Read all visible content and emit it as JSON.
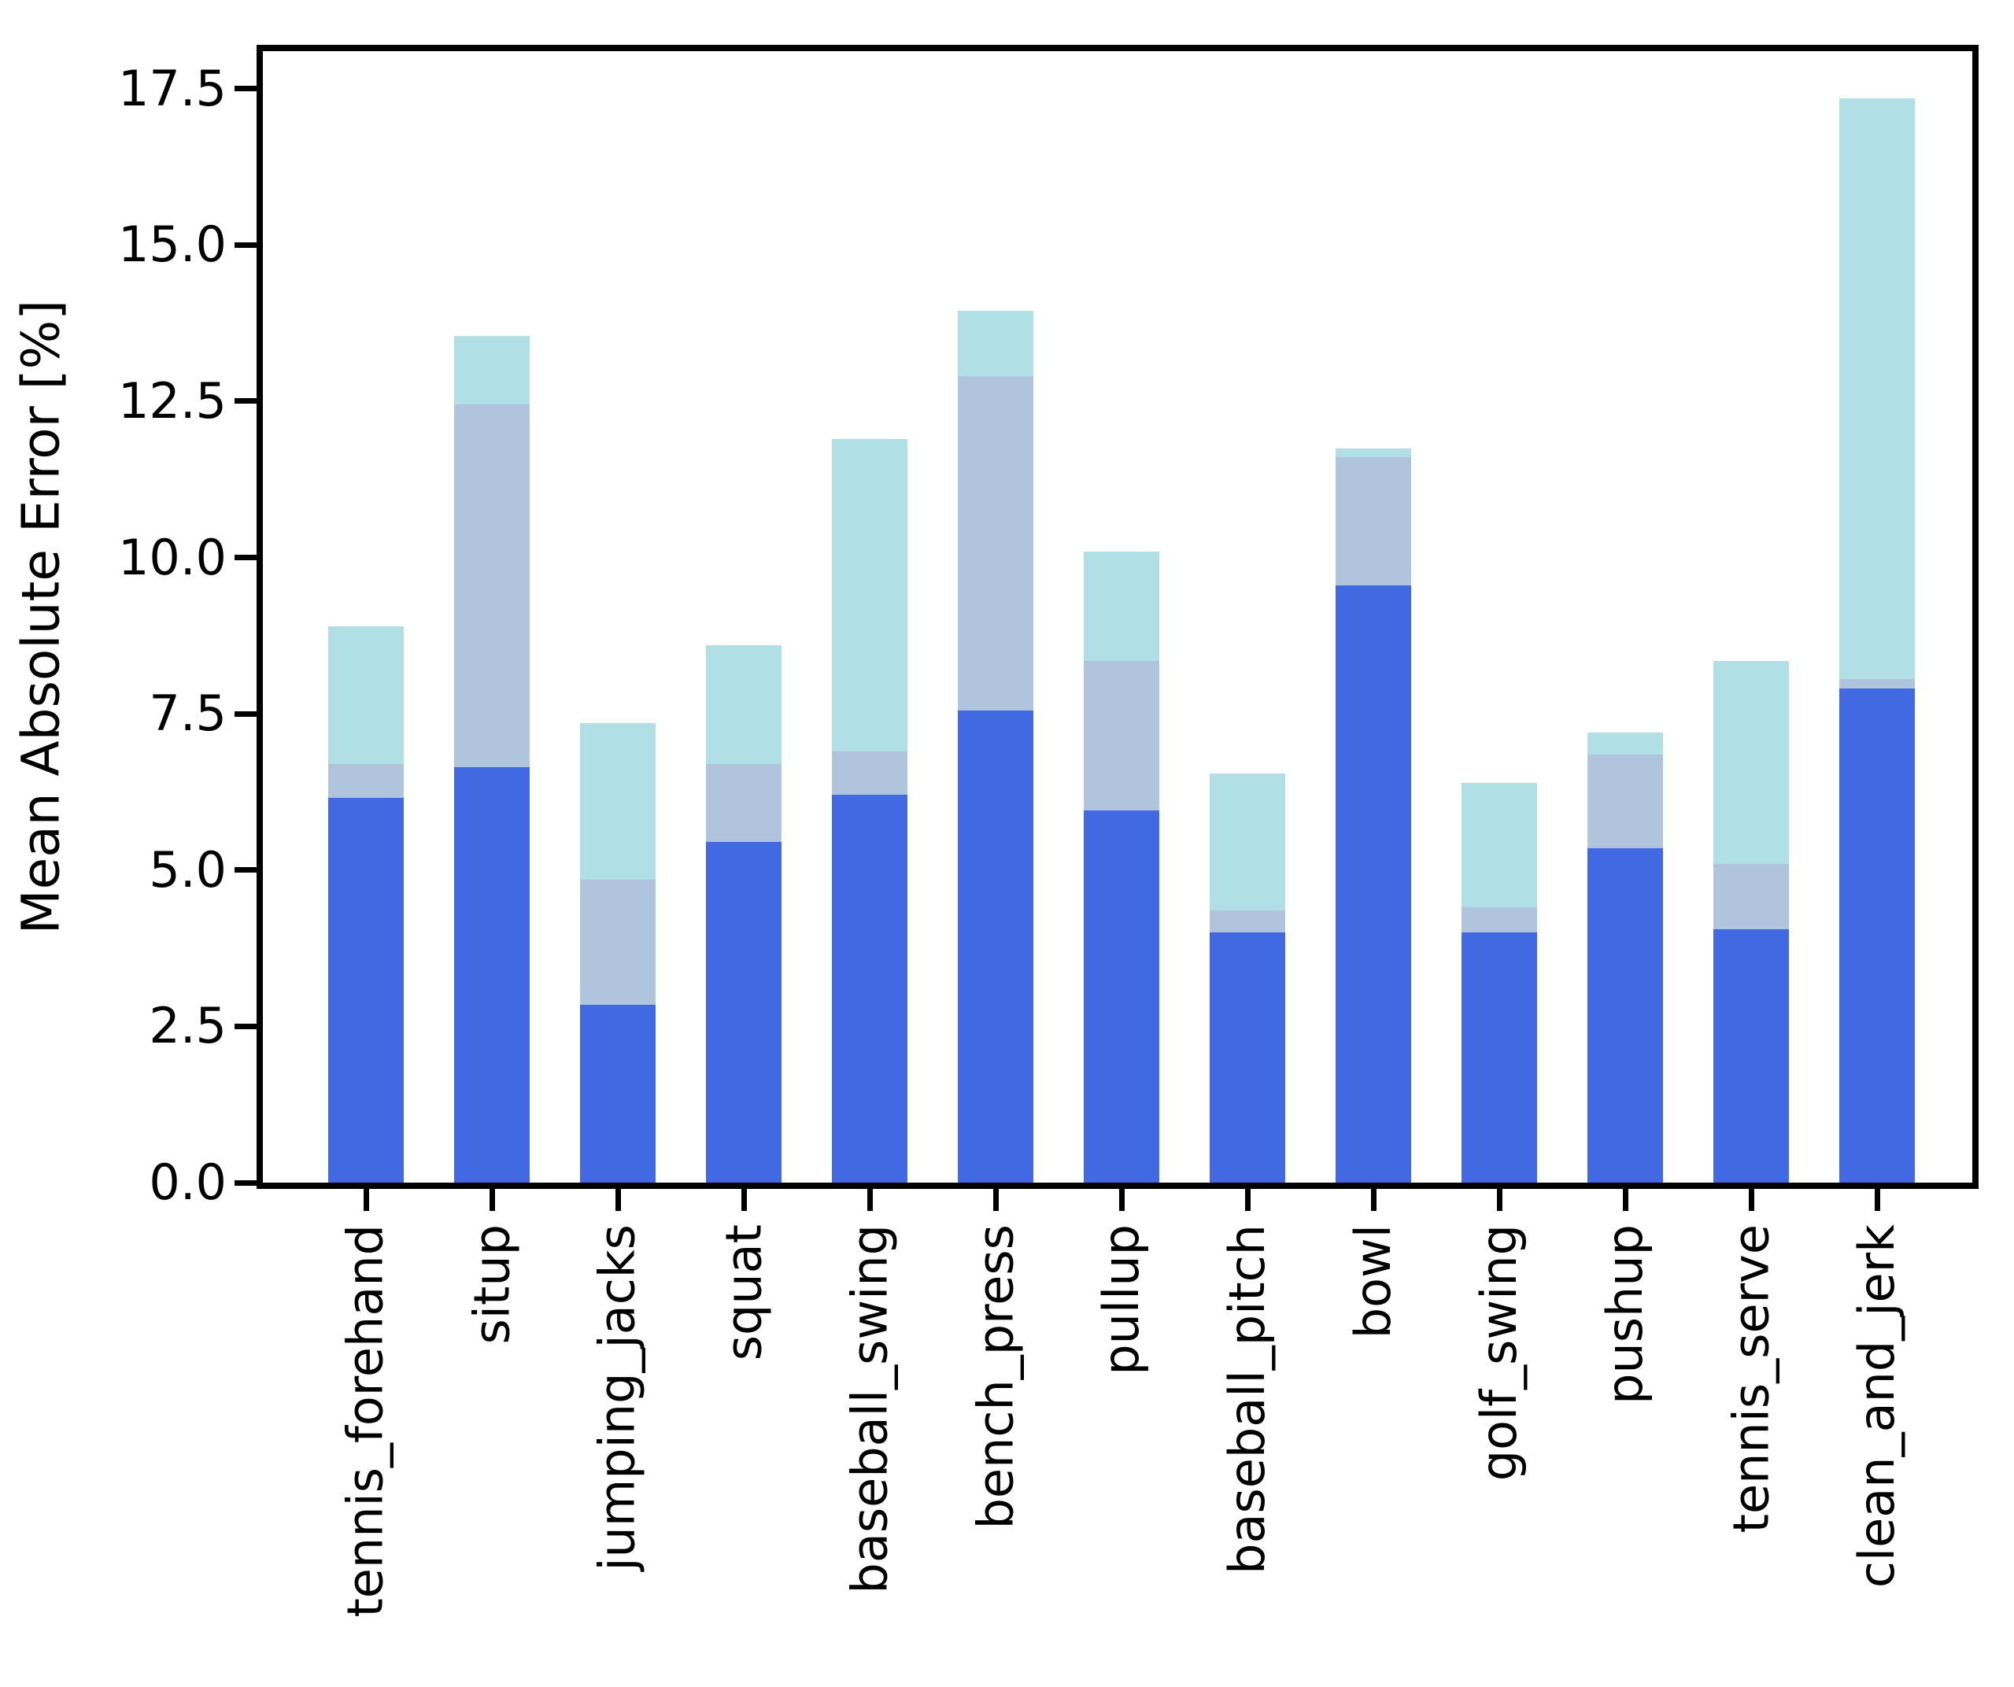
{
  "figure": {
    "background_color": "#ffffff",
    "text_color": "#000000"
  },
  "y_axis": {
    "label": "Mean Absolute Error [%]",
    "tick_labels": [
      "0.0",
      "2.5",
      "5.0",
      "7.5",
      "10.0",
      "12.5",
      "15.0",
      "17.5"
    ],
    "tick_values": [
      0,
      2.5,
      5,
      7.5,
      10,
      12.5,
      15,
      17.5
    ]
  },
  "chart_data": {
    "type": "bar",
    "subtype": "overlaid-stacked",
    "title": "",
    "xlabel": "",
    "ylabel": "Mean Absolute Error [%]",
    "ylim": [
      0,
      18.1
    ],
    "grid": false,
    "legend": null,
    "categories": [
      "tennis_forehand",
      "situp",
      "jumping_jacks",
      "squat",
      "baseball_swing",
      "bench_press",
      "pullup",
      "baseball_pitch",
      "bowl",
      "golf_swing",
      "pushup",
      "tennis_serve",
      "clean_and_jerk"
    ],
    "series": [
      {
        "name": "total-error-light-cyan",
        "color": "#B0E0E6",
        "values": [
          8.9,
          13.55,
          7.35,
          8.6,
          11.9,
          13.95,
          10.1,
          6.55,
          11.75,
          6.4,
          7.2,
          8.35,
          17.35
        ]
      },
      {
        "name": "mid-error-light-steel-blue",
        "color": "#B0C4DE",
        "values": [
          6.7,
          12.45,
          4.85,
          6.7,
          6.9,
          12.9,
          8.35,
          4.35,
          11.6,
          4.4,
          6.85,
          5.1,
          8.05
        ]
      },
      {
        "name": "base-error-royal-blue",
        "color": "#4169E1",
        "values": [
          6.15,
          6.65,
          2.85,
          5.45,
          6.2,
          7.55,
          5.95,
          4.0,
          9.55,
          4.0,
          5.35,
          4.05,
          7.9
        ]
      }
    ]
  }
}
